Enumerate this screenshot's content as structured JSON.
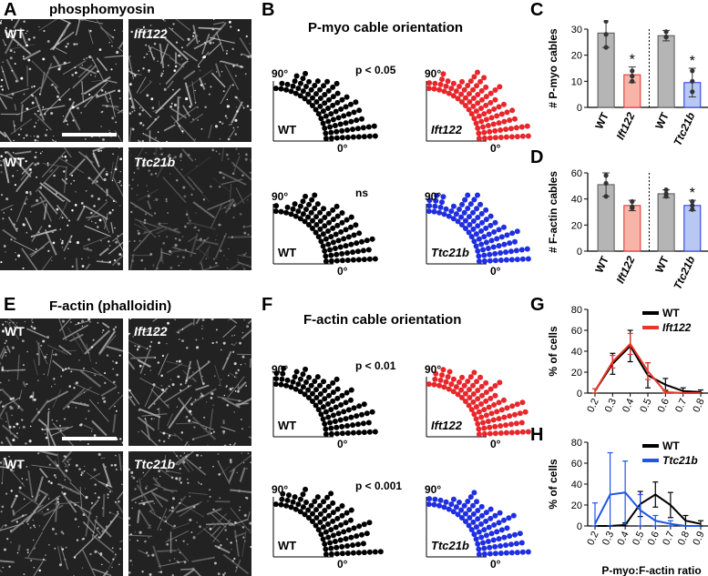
{
  "panels": {
    "A": {
      "letter": "A",
      "title": "phosphomyosin",
      "images": [
        {
          "label": "WT",
          "italic": false
        },
        {
          "label": "Ift122",
          "italic": true
        },
        {
          "label": "WT",
          "italic": false
        },
        {
          "label": "Ttc21b",
          "italic": true
        }
      ]
    },
    "B": {
      "letter": "B",
      "title": "P-myo cable orientation"
    },
    "C": {
      "letter": "C"
    },
    "D": {
      "letter": "D"
    },
    "E": {
      "letter": "E",
      "title": "F-actin (phalloidin)",
      "images": [
        {
          "label": "WT",
          "italic": false
        },
        {
          "label": "Ift122",
          "italic": true
        },
        {
          "label": "WT",
          "italic": false
        },
        {
          "label": "Ttc21b",
          "italic": true
        }
      ]
    },
    "F": {
      "letter": "F",
      "title": "F-actin cable orientation"
    },
    "G": {
      "letter": "G"
    },
    "H": {
      "letter": "H"
    }
  },
  "polar_plots": [
    {
      "id": "B-top",
      "deg90": "90°",
      "deg0": "0°",
      "left": {
        "label": "WT",
        "italic": false,
        "color": "#000000"
      },
      "right": {
        "label": "Ift122",
        "italic": true,
        "color": "#e8262b"
      },
      "pvalue": "p < 0.05"
    },
    {
      "id": "B-bottom",
      "deg90": "90°",
      "deg0": "0°",
      "left": {
        "label": "WT",
        "italic": false,
        "color": "#000000"
      },
      "right": {
        "label": "Ttc21b",
        "italic": true,
        "color": "#1f2ee0"
      },
      "pvalue": "ns"
    },
    {
      "id": "F-top",
      "deg90": "90°",
      "deg0": "0°",
      "left": {
        "label": "WT",
        "italic": false,
        "color": "#000000"
      },
      "right": {
        "label": "Ift122",
        "italic": true,
        "color": "#e8262b"
      },
      "pvalue": "p < 0.01"
    },
    {
      "id": "F-bottom",
      "deg90": "90°",
      "deg0": "0°",
      "left": {
        "label": "WT",
        "italic": false,
        "color": "#000000"
      },
      "right": {
        "label": "Ttc21b",
        "italic": true,
        "color": "#1f2ee0"
      },
      "pvalue": "p < 0.001"
    }
  ],
  "chart_data": [
    {
      "id": "C",
      "type": "bar",
      "ylabel": "# P-myo cables",
      "ylim": [
        0,
        30
      ],
      "yticks": [
        0,
        10,
        20,
        30
      ],
      "categories": [
        "WT",
        "Ift122",
        "WT",
        "Ttc21b"
      ],
      "category_italic": [
        false,
        true,
        false,
        true
      ],
      "values": [
        28.5,
        12.5,
        27.5,
        9.5
      ],
      "errors": [
        5.5,
        3,
        2,
        5.5
      ],
      "bar_colors": [
        "#b5b5b5",
        "#f7b5a8",
        "#b5b5b5",
        "#b7c8f3"
      ],
      "edge_colors": [
        "#555555",
        "#e8262b",
        "#555555",
        "#1f2ee0"
      ],
      "points": [
        [
          33,
          28,
          23
        ],
        [
          14,
          12,
          10
        ],
        [
          29,
          27,
          27
        ],
        [
          14,
          10,
          6
        ]
      ],
      "significance": [
        "",
        "*",
        "",
        "*"
      ],
      "divider": true
    },
    {
      "id": "D",
      "type": "bar",
      "ylabel": "# F-actin cables",
      "ylim": [
        0,
        60
      ],
      "yticks": [
        0,
        20,
        40,
        60
      ],
      "categories": [
        "WT",
        "Ift122",
        "WT",
        "Ttc21b"
      ],
      "category_italic": [
        false,
        true,
        false,
        true
      ],
      "values": [
        51,
        35,
        44,
        35
      ],
      "errors": [
        9,
        4,
        3,
        4
      ],
      "bar_colors": [
        "#b5b5b5",
        "#f7b5a8",
        "#b5b5b5",
        "#b7c8f3"
      ],
      "edge_colors": [
        "#555555",
        "#e8262b",
        "#555555",
        "#1f2ee0"
      ],
      "points": [
        [
          58,
          52,
          42
        ],
        [
          38,
          34,
          33
        ],
        [
          47,
          44,
          42
        ],
        [
          38,
          35,
          32
        ]
      ],
      "significance": [
        "",
        "",
        "",
        "*"
      ],
      "divider": true
    },
    {
      "id": "G",
      "type": "line",
      "ylabel": "% of cells",
      "ylim": [
        0,
        80
      ],
      "yticks": [
        0,
        20,
        40,
        60,
        80
      ],
      "x": [
        0.2,
        0.3,
        0.4,
        0.5,
        0.6,
        0.7,
        0.8
      ],
      "xticklabels": [
        "0.2",
        "0.3",
        "0.4",
        "0.5",
        "0.6",
        "0.7",
        "0.8"
      ],
      "series": [
        {
          "name": "WT",
          "italic": false,
          "color": "#000000",
          "values": [
            2,
            28,
            45,
            17,
            8,
            2,
            1
          ],
          "errors": [
            2,
            10,
            15,
            12,
            6,
            3,
            2
          ]
        },
        {
          "name": "Ift122",
          "italic": true,
          "color": "#e8362b",
          "values": [
            2,
            30,
            47,
            21,
            1,
            0,
            0
          ],
          "errors": [
            2,
            6,
            10,
            8,
            2,
            0,
            0
          ]
        }
      ]
    },
    {
      "id": "H",
      "type": "line",
      "ylabel": "% of cells",
      "xlabel": "P-myo:F-actin ratio",
      "ylim": [
        0,
        80
      ],
      "yticks": [
        0,
        20,
        40,
        60,
        80
      ],
      "x": [
        0.2,
        0.3,
        0.4,
        0.5,
        0.6,
        0.7,
        0.8,
        0.9
      ],
      "xticklabels": [
        "0.2",
        "0.3",
        "0.4",
        "0.5",
        "0.6",
        "0.7",
        "0.8",
        "0.9"
      ],
      "series": [
        {
          "name": "WT",
          "italic": false,
          "color": "#000000",
          "values": [
            0,
            0,
            1,
            21,
            30,
            20,
            5,
            2
          ],
          "errors": [
            0,
            0,
            2,
            12,
            12,
            12,
            5,
            3
          ]
        },
        {
          "name": "Ttc21b",
          "italic": true,
          "color": "#1f55e8",
          "values": [
            2,
            30,
            32,
            15,
            5,
            2,
            0,
            0
          ],
          "errors": [
            20,
            40,
            30,
            15,
            5,
            3,
            0,
            0
          ]
        }
      ]
    }
  ]
}
